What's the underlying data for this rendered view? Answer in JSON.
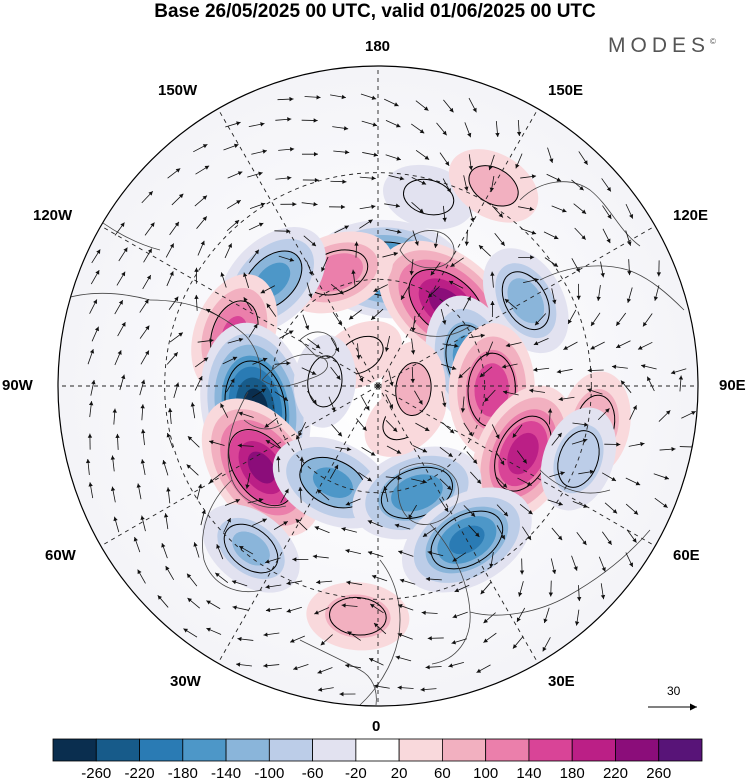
{
  "title": "Base 26/05/2025 00 UTC, valid 01/06/2025 00 UTC",
  "brand": "MODES",
  "brand_mark": "©",
  "longitude_labels": {
    "n180": "180",
    "e150": "150E",
    "e120": "120E",
    "e90": "90E",
    "e60": "60E",
    "e30": "30E",
    "s0": "0",
    "w30": "30W",
    "w60": "60W",
    "w90": "90W",
    "w120": "120W",
    "w150": "150W"
  },
  "reference_vector": "30",
  "colorbar": {
    "ticks": [
      "-260",
      "-220",
      "-180",
      "-140",
      "-100",
      "-60",
      "-20",
      "20",
      "60",
      "100",
      "140",
      "180",
      "220",
      "260"
    ],
    "colors": [
      "#0a2e4f",
      "#175b8a",
      "#2a7bb4",
      "#4d97c8",
      "#8ab5da",
      "#bccde8",
      "#e2e2f0",
      "#ffffff",
      "#f9d9dc",
      "#f2b0c0",
      "#eb7fab",
      "#d94497",
      "#bb1f86",
      "#8b0d7a",
      "#581478"
    ]
  },
  "anomaly_centers": [
    {
      "lon": 175,
      "lat": 57,
      "value": -230
    },
    {
      "lon": 140,
      "lat": 60,
      "value": 240
    },
    {
      "lon": -160,
      "lat": 56,
      "value": 120
    },
    {
      "lon": -135,
      "lat": 48,
      "value": -150
    },
    {
      "lon": -110,
      "lat": 47,
      "value": 140
    },
    {
      "lon": 120,
      "lat": 42,
      "value": -110
    },
    {
      "lon": 105,
      "lat": 63,
      "value": -170
    },
    {
      "lon": 80,
      "lat": 28,
      "value": 90
    },
    {
      "lon": 88,
      "lat": 58,
      "value": 170
    },
    {
      "lon": 65,
      "lat": 45,
      "value": 200
    },
    {
      "lon": 70,
      "lat": 30,
      "value": -90
    },
    {
      "lon": -80,
      "lat": 55,
      "value": -280
    },
    {
      "lon": -55,
      "lat": 50,
      "value": 230
    },
    {
      "lon": -25,
      "lat": 60,
      "value": -150
    },
    {
      "lon": -38,
      "lat": 32,
      "value": -100
    },
    {
      "lon": 20,
      "lat": 58,
      "value": -170
    },
    {
      "lon": 30,
      "lat": 40,
      "value": -190
    },
    {
      "lon": -5,
      "lat": 25,
      "value": 80
    },
    {
      "lon": 40,
      "lat": 78,
      "value": 50
    },
    {
      "lon": -150,
      "lat": 80,
      "value": 40
    },
    {
      "lon": 165,
      "lat": 35,
      "value": -50
    },
    {
      "lon": 150,
      "lat": 25,
      "value": 60
    },
    {
      "lon": 85,
      "lat": 80,
      "value": 60
    },
    {
      "lon": -95,
      "lat": 75,
      "value": -50
    }
  ]
}
